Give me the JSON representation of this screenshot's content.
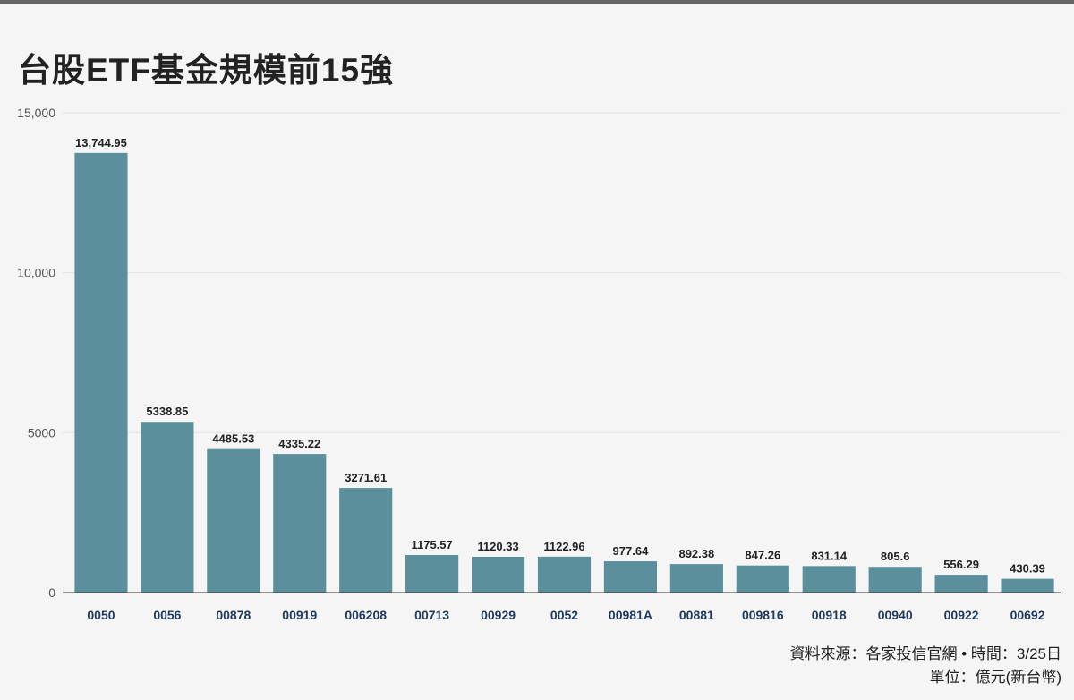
{
  "title": "台股ETF基金規模前15強",
  "footer": {
    "source": "資料來源：各家投信官網 • 時間：3/25日",
    "unit": "單位：億元(新台幣)"
  },
  "colors": {
    "bar": "#5a8f9b",
    "grid": "#e4e4e4",
    "axis": "#333333",
    "top_rule": "#666666"
  },
  "chart_data": {
    "type": "bar",
    "title": "台股ETF基金規模前15強",
    "xlabel": "",
    "ylabel": "",
    "ylim": [
      0,
      15000
    ],
    "grid": true,
    "yticks": [
      {
        "value": 0,
        "label": "0"
      },
      {
        "value": 5000,
        "label": "5000"
      },
      {
        "value": 10000,
        "label": "10,000"
      },
      {
        "value": 15000,
        "label": "15,000"
      }
    ],
    "categories": [
      "0050",
      "0056",
      "00878",
      "00919",
      "006208",
      "00713",
      "00929",
      "0052",
      "00981A",
      "00881",
      "009816",
      "00918",
      "00940",
      "00922",
      "00692"
    ],
    "values": [
      13744.95,
      5338.85,
      4485.53,
      4335.22,
      3271.61,
      1175.57,
      1120.33,
      1122.96,
      977.64,
      892.38,
      847.26,
      831.14,
      805.6,
      556.29,
      430.39
    ],
    "value_labels": [
      "13,744.95",
      "5338.85",
      "4485.53",
      "4335.22",
      "3271.61",
      "1175.57",
      "1120.33",
      "1122.96",
      "977.64",
      "892.38",
      "847.26",
      "831.14",
      "805.6",
      "556.29",
      "430.39"
    ]
  }
}
